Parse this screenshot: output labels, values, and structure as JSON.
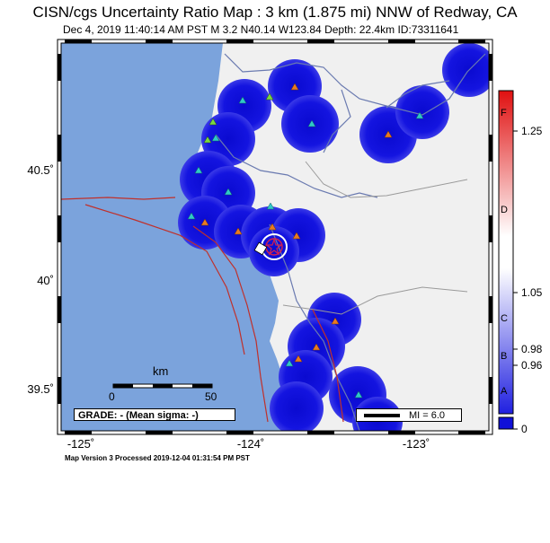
{
  "title": "CISN/cgs Uncertainty Ratio Map : 3 km (1.875 mi) NNW of Redway, CA",
  "subtitle": "Dec  4, 2019 11:40:14 AM PST   M 3.2   N40.14 W123.84   Depth: 22.4km   ID:73311641",
  "footer": "Map Version 3 Processed 2019-12-04 01:31:54 PM PST",
  "axes": {
    "x_ticks": [
      "-125˚",
      "-124˚",
      "-123˚"
    ],
    "y_ticks": [
      "40.5˚",
      "40˚",
      "39.5˚"
    ]
  },
  "scalebar": {
    "unit": "km",
    "start": "0",
    "end": "50"
  },
  "grade_box": "GRADE: - (Mean sigma: -)",
  "legend_mi": "MI = 6.0",
  "colorbar": {
    "value_labels": [
      "1.25",
      "1.05",
      "0.98",
      "0.96",
      "0"
    ],
    "letters": [
      "F",
      "D",
      "C",
      "B",
      "A"
    ]
  },
  "colors": {
    "ocean": "#7ba3dc",
    "land": "#f0f0f0",
    "uncertainty_blue": "#1010d8",
    "fault": "#c0302a",
    "station_orange": "#e87a22",
    "station_cyan": "#30c8c8"
  }
}
